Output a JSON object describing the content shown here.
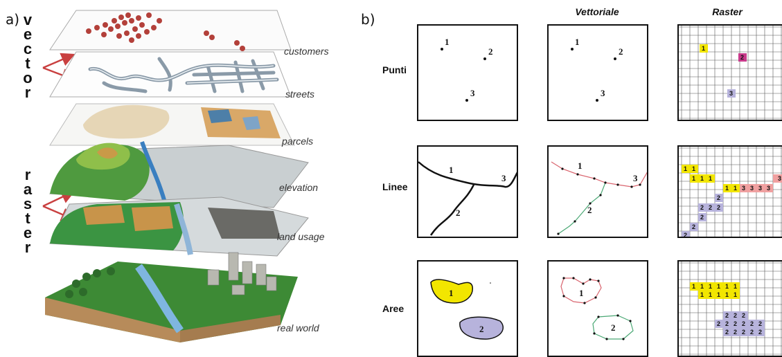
{
  "panel_a": {
    "label": "a)",
    "vector_letters": [
      "v",
      "e",
      "c",
      "t",
      "o",
      "r"
    ],
    "raster_letters": [
      "r",
      "a",
      "s",
      "t",
      "e",
      "r"
    ],
    "layers": [
      "customers",
      "streets",
      "parcels",
      "elevation",
      "land usage",
      "real world"
    ]
  },
  "panel_b": {
    "label": "b)",
    "columns": [
      "Vettoriale",
      "Raster"
    ],
    "rows": [
      "Punti",
      "Linee",
      "Aree"
    ],
    "point_labels": [
      "1",
      "2",
      "3"
    ],
    "line_labels": [
      "1",
      "2",
      "3"
    ],
    "area_labels": [
      "1",
      "2"
    ],
    "colors": {
      "yellow": "#f2e600",
      "magenta": "#c8398a",
      "lavender": "#b7b3dc",
      "pink_line": "#d9646e",
      "green_line": "#4aa874",
      "salmon": "#f0a0a0"
    }
  }
}
